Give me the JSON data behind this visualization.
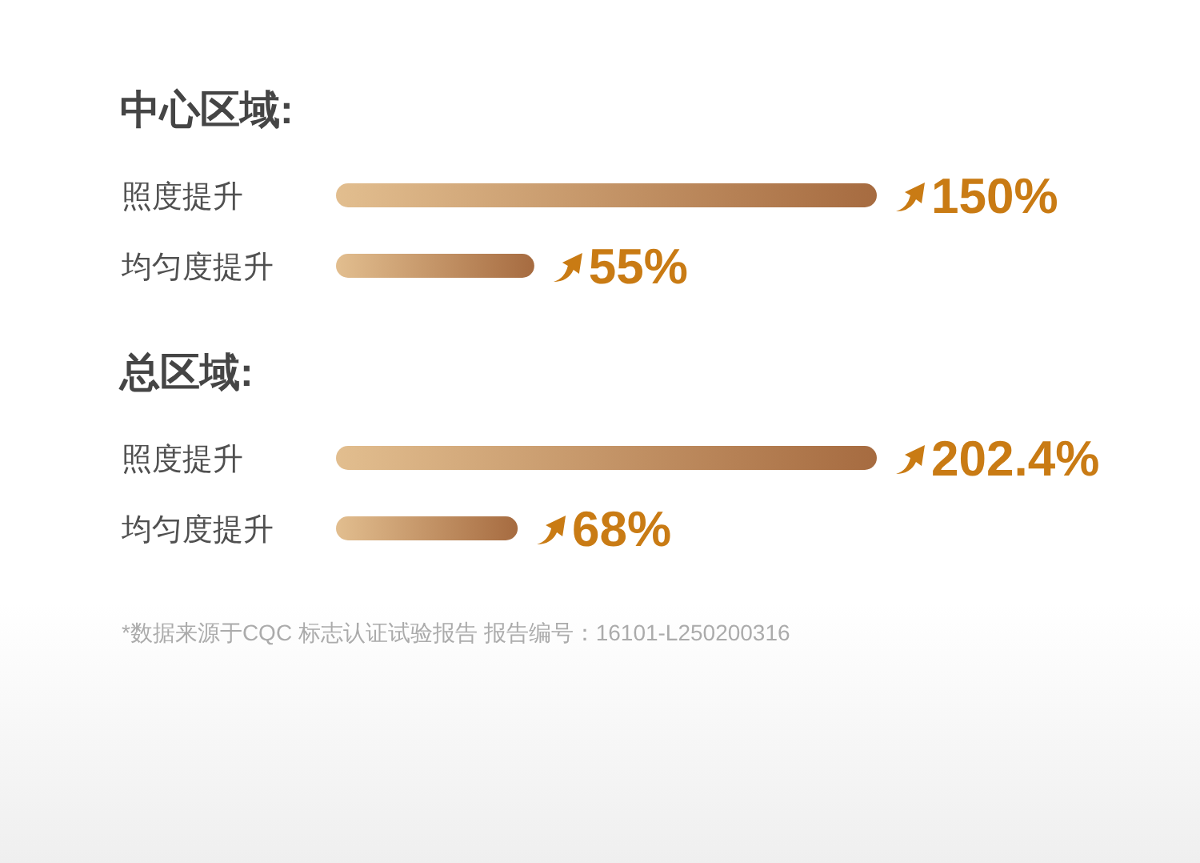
{
  "chart_data": [
    {
      "type": "bar",
      "orientation": "horizontal",
      "title": "中心区域:",
      "categories": [
        "照度提升",
        "均匀度提升"
      ],
      "values": [
        150,
        55
      ],
      "value_labels": [
        "150%",
        "55%"
      ],
      "color": "#c99466"
    },
    {
      "type": "bar",
      "orientation": "horizontal",
      "title": "总区域:",
      "categories": [
        "照度提升",
        "均匀度提升"
      ],
      "values": [
        202.4,
        68
      ],
      "value_labels": [
        "202.4%",
        "68%"
      ],
      "color": "#c99466",
      "annotations": [
        "*数据来源于CQC 标志认证试验报告 报告编号：16101-L250200316"
      ]
    }
  ]
}
